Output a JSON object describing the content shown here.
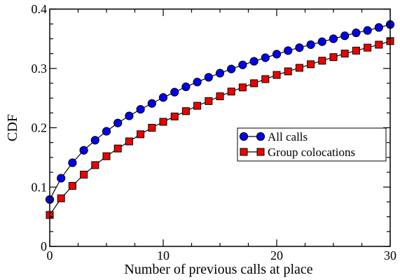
{
  "chart_data": {
    "type": "line",
    "title": "",
    "xlabel": "Number of previous calls at place",
    "ylabel": "CDF",
    "xlim": [
      0,
      30
    ],
    "ylim": [
      0,
      0.4
    ],
    "xticks": [
      0,
      10,
      20,
      30
    ],
    "yticks": [
      0,
      0.1,
      0.2,
      0.3,
      0.4
    ],
    "xtick_labels": [
      "0",
      "10",
      "20",
      "30"
    ],
    "ytick_labels": [
      "0",
      "0.1",
      "0.2",
      "0.3",
      "0.4"
    ],
    "grid": false,
    "legend_position": "center-right",
    "x": [
      0,
      1,
      2,
      3,
      4,
      5,
      6,
      7,
      8,
      9,
      10,
      11,
      12,
      13,
      14,
      15,
      16,
      17,
      18,
      19,
      20,
      21,
      22,
      23,
      24,
      25,
      26,
      27,
      28,
      29,
      30
    ],
    "series": [
      {
        "name": "All calls",
        "marker": "circle",
        "color": "#0000ee",
        "values": [
          0.079,
          0.115,
          0.141,
          0.162,
          0.179,
          0.194,
          0.208,
          0.22,
          0.231,
          0.241,
          0.251,
          0.26,
          0.269,
          0.277,
          0.285,
          0.292,
          0.299,
          0.306,
          0.312,
          0.318,
          0.324,
          0.33,
          0.335,
          0.34,
          0.345,
          0.35,
          0.355,
          0.36,
          0.364,
          0.369,
          0.374
        ]
      },
      {
        "name": "Group colocations",
        "marker": "square",
        "color": "#ee0000",
        "values": [
          0.053,
          0.081,
          0.102,
          0.121,
          0.137,
          0.152,
          0.165,
          0.177,
          0.189,
          0.2,
          0.21,
          0.219,
          0.228,
          0.237,
          0.245,
          0.253,
          0.261,
          0.268,
          0.275,
          0.282,
          0.289,
          0.295,
          0.301,
          0.307,
          0.313,
          0.319,
          0.325,
          0.33,
          0.335,
          0.34,
          0.346
        ]
      }
    ]
  }
}
